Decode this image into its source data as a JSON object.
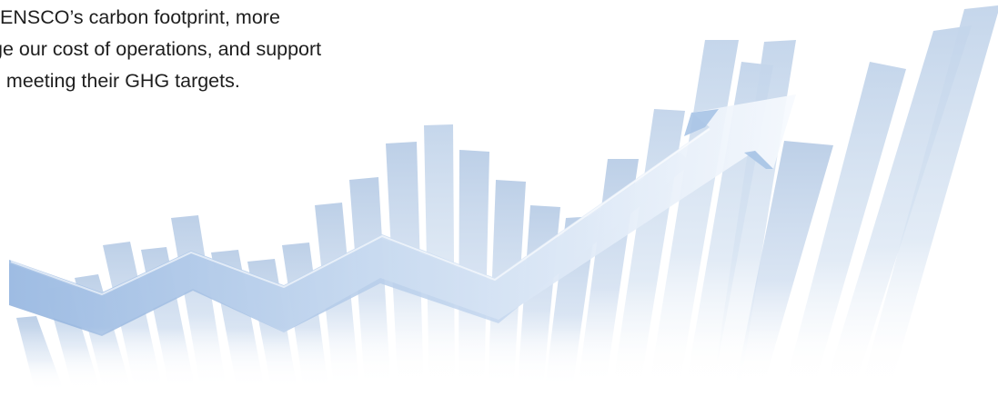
{
  "caption": {
    "lines": [
      "ENSCO’s carbon footprint, more",
      "ge our cost of operations, and support",
      "n meeting their GHG targets."
    ]
  },
  "graphic": {
    "icon": "rising-bar-chart-with-arrow",
    "colors": {
      "bar": "#b9cde6",
      "arrow_dark": "#9fbde4",
      "arrow_light": "#eef4fb",
      "text": "#1e1e1e"
    }
  }
}
